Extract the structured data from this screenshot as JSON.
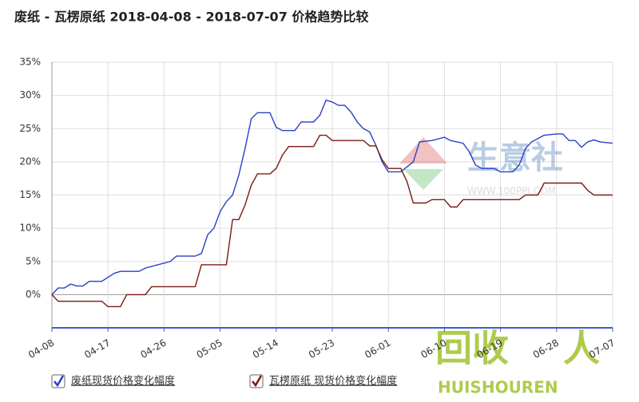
{
  "chart_data": {
    "type": "line",
    "title": "废纸 - 瓦楞原纸 2018-04-08 - 2018-07-07 价格趋势比较",
    "xlim": [
      "04-08",
      "07-07"
    ],
    "xticks": [
      "04-08",
      "04-17",
      "04-26",
      "05-05",
      "05-14",
      "05-23",
      "06-01",
      "06-10",
      "06-19",
      "06-28",
      "07-07"
    ],
    "ylim": [
      -5,
      35
    ],
    "yticks": [
      {
        "value": 0,
        "label": "0%"
      },
      {
        "value": 5,
        "label": "5%"
      },
      {
        "value": 10,
        "label": "10%"
      },
      {
        "value": 15,
        "label": "15%"
      },
      {
        "value": 20,
        "label": "20%"
      },
      {
        "value": 25,
        "label": "25%"
      },
      {
        "value": 30,
        "label": "30%"
      },
      {
        "value": 35,
        "label": "35%"
      }
    ],
    "grid": true,
    "legend": "bottom",
    "series": [
      {
        "name": "废纸现货价格变化幅度",
        "color": "#2a3fc8",
        "x": [
          "04-08",
          "04-09",
          "04-10",
          "04-11",
          "04-12",
          "04-13",
          "04-14",
          "04-16",
          "04-18",
          "04-19",
          "04-22",
          "04-23",
          "04-25",
          "04-27",
          "04-28",
          "05-01",
          "05-02",
          "05-03",
          "05-04",
          "05-05",
          "05-06",
          "05-07",
          "05-08",
          "05-09",
          "05-10",
          "05-11",
          "05-13",
          "05-14",
          "05-15",
          "05-17",
          "05-18",
          "05-20",
          "05-21",
          "05-22",
          "05-23",
          "05-24",
          "05-25",
          "05-26",
          "05-27",
          "05-28",
          "05-29",
          "05-30",
          "05-31",
          "06-01",
          "06-03",
          "06-05",
          "06-06",
          "06-08",
          "06-10",
          "06-11",
          "06-13",
          "06-14",
          "06-15",
          "06-16",
          "06-18",
          "06-19",
          "06-21",
          "06-22",
          "06-23",
          "06-24",
          "06-26",
          "06-28",
          "06-29",
          "06-30",
          "07-01",
          "07-02",
          "07-03",
          "07-04",
          "07-05",
          "07-07"
        ],
        "values": [
          0,
          1,
          1,
          1.6,
          1.3,
          1.3,
          2,
          2,
          3.2,
          3.5,
          3.5,
          4,
          4.5,
          5,
          5.8,
          5.8,
          6.2,
          9,
          10,
          12.5,
          14,
          15,
          18,
          22,
          26.5,
          27.4,
          27.4,
          25.2,
          24.7,
          24.7,
          26,
          26,
          27,
          29.3,
          29,
          28.5,
          28.5,
          27.5,
          26,
          25,
          24.5,
          22.5,
          20,
          18.5,
          18.5,
          20,
          23,
          23.2,
          23.7,
          23.2,
          22.8,
          21.5,
          19.5,
          19,
          19,
          18.5,
          18.5,
          19.5,
          22,
          23,
          24,
          24.2,
          24.2,
          23.2,
          23.2,
          22.2,
          23,
          23.3,
          23,
          22.8
        ]
      },
      {
        "name": "瓦楞原纸 现货价格变化幅度",
        "color": "#7a1a12",
        "x": [
          "04-08",
          "04-09",
          "04-16",
          "04-17",
          "04-19",
          "04-20",
          "04-23",
          "04-24",
          "05-01",
          "05-02",
          "05-06",
          "05-07",
          "05-08",
          "05-09",
          "05-10",
          "05-11",
          "05-13",
          "05-14",
          "05-15",
          "05-16",
          "05-20",
          "05-21",
          "05-22",
          "05-23",
          "05-28",
          "05-29",
          "05-30",
          "05-31",
          "06-01",
          "06-03",
          "06-04",
          "06-05",
          "06-07",
          "06-08",
          "06-10",
          "06-11",
          "06-12",
          "06-13",
          "06-22",
          "06-23",
          "06-25",
          "06-26",
          "07-02",
          "07-03",
          "07-04",
          "07-07"
        ],
        "values": [
          0,
          -1,
          -1,
          -1.8,
          -1.8,
          0,
          0,
          1.2,
          1.2,
          4.5,
          4.5,
          11.3,
          11.3,
          13.5,
          16.5,
          18.2,
          18.2,
          19,
          21,
          22.3,
          22.3,
          24,
          24,
          23.2,
          23.2,
          22.4,
          22.4,
          20.3,
          19,
          19,
          17,
          13.8,
          13.8,
          14.3,
          14.3,
          13.2,
          13.2,
          14.3,
          14.3,
          15,
          15,
          16.8,
          16.8,
          15.7,
          15,
          15
        ]
      }
    ],
    "watermarks": [
      "生意社",
      "WWW.100PPI.COM",
      "回收",
      "HUISHOUREN"
    ]
  }
}
